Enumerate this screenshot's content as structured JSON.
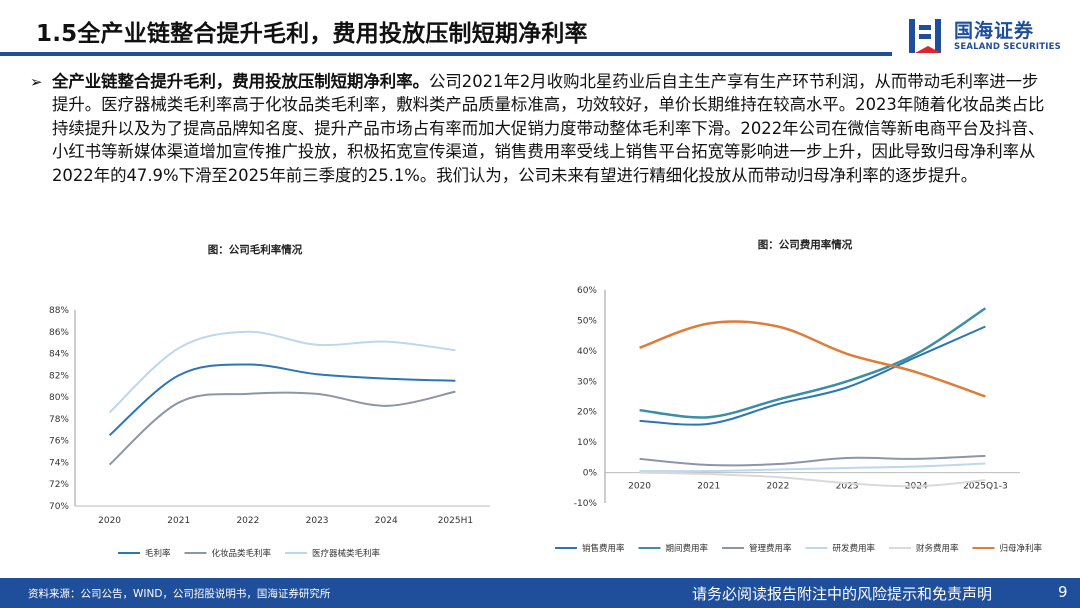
{
  "slide": {
    "title": "1.5全产业链整合提升毛利，费用投放压制短期净利率",
    "lead": "全产业链整合提升毛利，费用投放压制短期净利率。",
    "body": "公司2021年2月收购北星药业后自主生产享有生产环节利润，从而带动毛利率进一步提升。医疗器械类毛利率高于化妆品类毛利率，敷料类产品质量标准高，功效较好，单价长期维持在较高水平。2023年随着化妆品类占比持续提升以及为了提高品牌知名度、提升产品市场占有率而加大促销力度带动整体毛利率下滑。2022年公司在微信等新电商平台及抖音、小红书等新媒体渠道增加宣传推广投放，积极拓宽宣传渠道，销售费用率受线上销售平台拓宽等影响进一步上升，因此导致归母净利率从2022年的47.9%下滑至2025年前三季度的25.1%。我们认为，公司未来有望进行精细化投放从而带动归母净利率的逐步提升。"
  },
  "logo": {
    "cn": "国海证券",
    "en": "SEALAND SECURITIES"
  },
  "footer": {
    "source": "资料来源：公司公告，WIND，公司招股说明书，国海证券研究所",
    "disclaimer": "请务必阅读报告附注中的风险提示和免责声明",
    "page": "9"
  },
  "colors": {
    "brand": "#1f4e9a"
  },
  "chart_data": [
    {
      "type": "line",
      "title": "图：公司毛利率情况",
      "categories": [
        "2020",
        "2021",
        "2022",
        "2023",
        "2024",
        "2025H1"
      ],
      "yticks": [
        "70%",
        "72%",
        "74%",
        "76%",
        "78%",
        "80%",
        "82%",
        "84%",
        "86%",
        "88%"
      ],
      "ylim": [
        70,
        88
      ],
      "series": [
        {
          "name": "毛利率",
          "color": "#2e75b6",
          "values": [
            76.5,
            82.0,
            83.0,
            82.1,
            81.7,
            81.5
          ]
        },
        {
          "name": "化妆品类毛利率",
          "color": "#8c96a8",
          "values": [
            73.8,
            79.5,
            80.3,
            80.3,
            79.2,
            80.5
          ]
        },
        {
          "name": "医疗器械类毛利率",
          "color": "#bdd7ee",
          "values": [
            78.6,
            84.5,
            86.0,
            84.8,
            85.1,
            84.3
          ]
        }
      ]
    },
    {
      "type": "line",
      "title": "图：公司费用率情况",
      "categories": [
        "2020",
        "2021",
        "2022",
        "2023",
        "2024",
        "2025Q1-3"
      ],
      "yticks": [
        "-10%",
        "0%",
        "10%",
        "20%",
        "30%",
        "40%",
        "50%",
        "60%"
      ],
      "ylim": [
        -10,
        60
      ],
      "series": [
        {
          "name": "销售费用率",
          "color": "#2e75b6",
          "values": [
            17.0,
            16.0,
            22.5,
            28.0,
            38.0,
            48.0
          ]
        },
        {
          "name": "期间费用率",
          "color": "#3b8ea5",
          "values": [
            20.5,
            18.2,
            24.0,
            30.0,
            39.0,
            54.0
          ]
        },
        {
          "name": "管理费用率",
          "color": "#8c96a8",
          "values": [
            4.5,
            2.5,
            2.8,
            4.8,
            4.5,
            5.5
          ]
        },
        {
          "name": "研发费用率",
          "color": "#bdd7ee",
          "values": [
            0.5,
            0.5,
            1.0,
            1.5,
            2.0,
            3.0
          ]
        },
        {
          "name": "财务费用率",
          "color": "#d9d9d9",
          "values": [
            0.0,
            -0.5,
            -1.5,
            -3.5,
            -4.5,
            -2.5
          ]
        },
        {
          "name": "归母净利率",
          "color": "#e07b39",
          "values": [
            41.0,
            49.0,
            48.0,
            39.0,
            33.0,
            25.0
          ]
        }
      ]
    }
  ]
}
